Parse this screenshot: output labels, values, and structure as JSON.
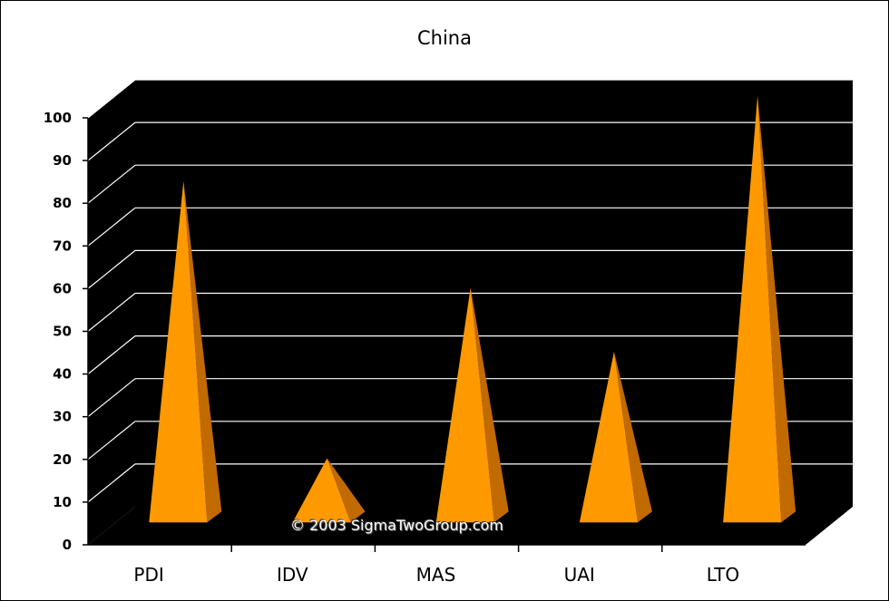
{
  "chart_data": {
    "type": "bar",
    "title": "China",
    "categories": [
      "PDI",
      "IDV",
      "MAS",
      "UAI",
      "LTO"
    ],
    "values": [
      80,
      15,
      55,
      40,
      100
    ],
    "ylim": [
      0,
      100
    ],
    "yticks": [
      0,
      10,
      20,
      30,
      40,
      50,
      60,
      70,
      80,
      90,
      100
    ],
    "grid": true,
    "style": "3d-pyramid",
    "colors": {
      "bar": "#ff9900",
      "bar_shade": "#c06a00",
      "bar_dark": "#8a4a00",
      "plot_bg": "#000000",
      "grid": "#ffffff",
      "page_bg": "#ffffff"
    }
  },
  "watermark": "© 2003  SigmaTwoGroup.com"
}
